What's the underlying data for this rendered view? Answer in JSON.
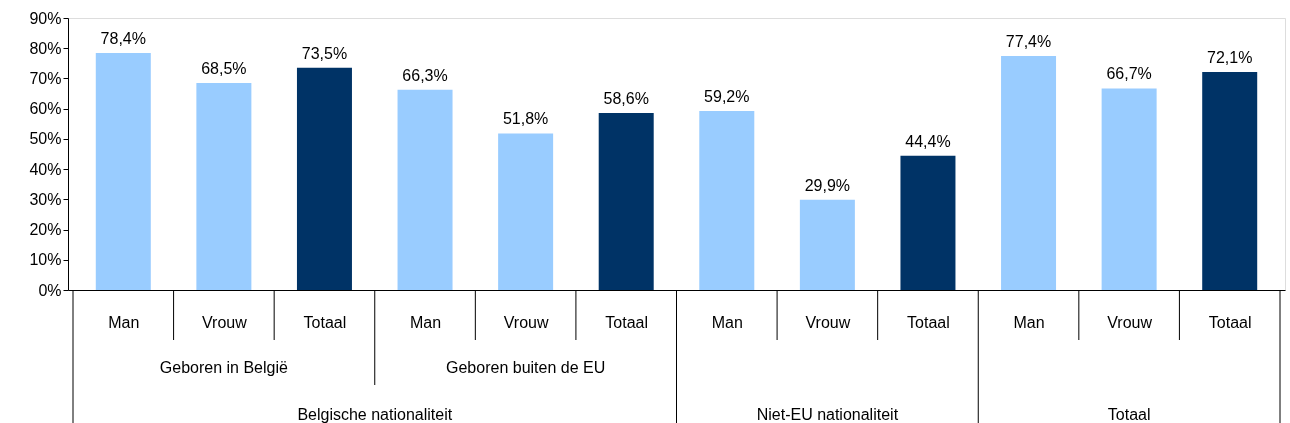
{
  "chart_data": {
    "type": "bar",
    "categories": [
      "Man",
      "Vrouw",
      "Totaal",
      "Man",
      "Vrouw",
      "Totaal",
      "Man",
      "Vrouw",
      "Totaal",
      "Man",
      "Vrouw",
      "Totaal"
    ],
    "values": [
      78.4,
      68.5,
      73.5,
      66.3,
      51.8,
      58.6,
      59.2,
      29.9,
      44.4,
      77.4,
      66.7,
      72.1
    ],
    "colors": [
      "#99ccff",
      "#99ccff",
      "#003366",
      "#99ccff",
      "#99ccff",
      "#003366",
      "#99ccff",
      "#99ccff",
      "#003366",
      "#99ccff",
      "#99ccff",
      "#003366"
    ],
    "value_labels": [
      "78,4%",
      "68,5%",
      "73,5%",
      "66,3%",
      "51,8%",
      "58,6%",
      "59,2%",
      "29,9%",
      "44,4%",
      "77,4%",
      "66,7%",
      "72,1%"
    ],
    "ylim": [
      0,
      90
    ],
    "yticks": [
      {
        "value": 0,
        "label": "0%"
      },
      {
        "value": 10,
        "label": "10%"
      },
      {
        "value": 20,
        "label": "20%"
      },
      {
        "value": 30,
        "label": "30%"
      },
      {
        "value": 40,
        "label": "40%"
      },
      {
        "value": 50,
        "label": "50%"
      },
      {
        "value": 60,
        "label": "60%"
      },
      {
        "value": 70,
        "label": "70%"
      },
      {
        "value": 80,
        "label": "80%"
      },
      {
        "value": 90,
        "label": "90%"
      }
    ],
    "grid": false,
    "annotations": [
      "Geboren in België",
      "Geboren buiten de EU",
      "Belgische nationaliteit",
      "Niet-EU nationaliteit",
      "Totaal"
    ]
  }
}
